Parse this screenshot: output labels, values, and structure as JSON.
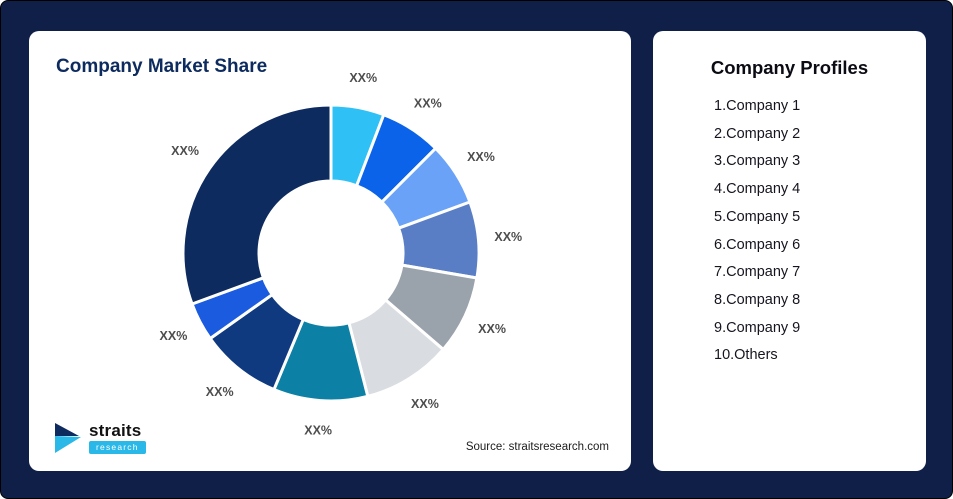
{
  "page": {
    "background_color": "#101f48"
  },
  "left_card": {
    "title": "Company Market Share",
    "source": "Source: straitsresearch.com",
    "logo": {
      "name": "straits",
      "sub": "research"
    }
  },
  "right_card": {
    "title": "Company Profiles",
    "items": [
      "1.Company 1",
      "2.Company 2",
      "3.Company 3",
      "4.Company 4",
      "5.Company 5",
      "6.Company 6",
      "7.Company 7",
      "8.Company 8",
      "9.Company 9",
      "10.Others"
    ]
  },
  "chart_data": {
    "type": "pie",
    "donut": true,
    "title": "Company Market Share",
    "data_label_text": "XX%",
    "categories": [
      "Company 1",
      "Company 2",
      "Company 3",
      "Company 4",
      "Company 5",
      "Company 6",
      "Company 7",
      "Company 8",
      "Company 9",
      "Others"
    ],
    "segments": [
      {
        "label": "XX%",
        "value": 5.8,
        "color": "#2fc1f5"
      },
      {
        "label": "XX%",
        "value": 6.7,
        "color": "#0a63e8"
      },
      {
        "label": "XX%",
        "value": 6.9,
        "color": "#6aa2f7"
      },
      {
        "label": "XX%",
        "value": 8.3,
        "color": "#5a7ec5"
      },
      {
        "label": "XX%",
        "value": 8.6,
        "color": "#9aa2ac"
      },
      {
        "label": "XX%",
        "value": 9.7,
        "color": "#d9dce0"
      },
      {
        "label": "XX%",
        "value": 10.3,
        "color": "#0c80a5"
      },
      {
        "label": "XX%",
        "value": 8.9,
        "color": "#0f3a80"
      },
      {
        "label": "XX%",
        "value": 4.2,
        "color": "#1a5be0"
      },
      {
        "label": "XX%",
        "value": 30.6,
        "color": "#0d2b5e"
      }
    ]
  }
}
